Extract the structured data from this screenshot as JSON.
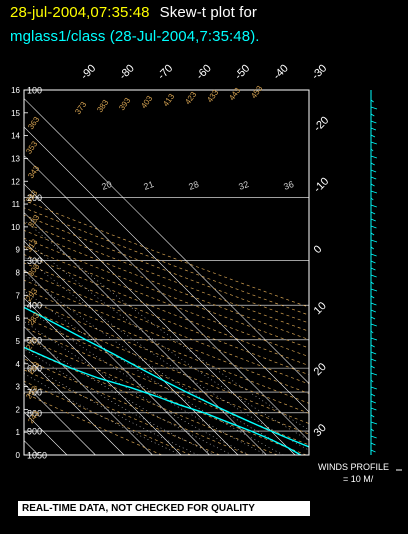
{
  "header": {
    "timestamp": "28-jul-2004,07:35:48",
    "title": "Skew-t plot for",
    "subtitle": "mglass1/class (28-Jul-2004,7:35:48)."
  },
  "quality_note": "REAL-TIME DATA, NOT CHECKED FOR QUALITY",
  "winds": {
    "title": "WINDS PROFILE",
    "scale": "= 10 M/"
  },
  "colors": {
    "profile": "#00ffff",
    "axes": "#ffffff",
    "timestamp": "#ffff00",
    "isotherm": "#ffffff",
    "dry_adiabat": "#d2a050",
    "moist_adiabat": "#c8c8c8"
  },
  "chart_data": {
    "type": "line",
    "title": "",
    "ylabel_left": [
      "0",
      "1",
      "2",
      "3",
      "4",
      "5",
      "6",
      "7",
      "8",
      "9",
      "10",
      "11",
      "12",
      "13",
      "14",
      "15",
      "16"
    ],
    "pressure_levels": [
      100,
      200,
      300,
      400,
      500,
      600,
      700,
      800,
      900,
      1050
    ],
    "temp_ticks_top": [
      -90,
      -80,
      -70,
      -60,
      -50,
      -40,
      -30
    ],
    "temp_ticks_right": [
      -20,
      -10,
      0,
      10,
      20,
      30
    ],
    "mixing_ratio_labels": [
      "20",
      "21",
      "28",
      "32",
      "36"
    ],
    "theta_labels": [
      "453",
      "443",
      "433",
      "423",
      "413",
      "403",
      "393",
      "383",
      "373",
      "363",
      "353",
      "343",
      "333",
      "323",
      "313",
      "303",
      "293",
      "283",
      "273",
      "263",
      "253",
      "243"
    ],
    "temperature_profile": {
      "name": "",
      "points": [
        [
          1050,
          32
        ],
        [
          1000,
          28
        ],
        [
          950,
          24
        ],
        [
          900,
          20
        ],
        [
          850,
          16
        ],
        [
          800,
          12
        ],
        [
          750,
          8
        ],
        [
          700,
          4
        ],
        [
          650,
          0
        ],
        [
          600,
          -4
        ],
        [
          550,
          -8
        ],
        [
          500,
          -13
        ],
        [
          450,
          -18
        ],
        [
          400,
          -24
        ],
        [
          350,
          -31
        ],
        [
          300,
          -39
        ],
        [
          250,
          -48
        ],
        [
          200,
          -56
        ],
        [
          175,
          -60
        ],
        [
          150,
          -64
        ],
        [
          125,
          -68
        ],
        [
          110,
          -72
        ],
        [
          100,
          -74
        ]
      ]
    },
    "dewpoint_profile": {
      "name": "",
      "points": [
        [
          1050,
          22
        ],
        [
          1000,
          20
        ],
        [
          950,
          17
        ],
        [
          900,
          13
        ],
        [
          850,
          8
        ],
        [
          800,
          3
        ],
        [
          760,
          -3
        ],
        [
          720,
          -8
        ],
        [
          680,
          -14
        ],
        [
          640,
          -22
        ],
        [
          600,
          -28
        ],
        [
          560,
          -33
        ],
        [
          520,
          -38
        ],
        [
          500,
          -42
        ],
        [
          470,
          -48
        ],
        [
          440,
          -55
        ],
        [
          400,
          -60
        ],
        [
          370,
          -64
        ],
        [
          340,
          -68
        ],
        [
          310,
          -72
        ],
        [
          280,
          -76
        ],
        [
          250,
          -80
        ],
        [
          220,
          -84
        ],
        [
          200,
          -87
        ],
        [
          175,
          -88
        ],
        [
          150,
          -89
        ],
        [
          125,
          -89
        ],
        [
          100,
          -90
        ]
      ]
    }
  }
}
